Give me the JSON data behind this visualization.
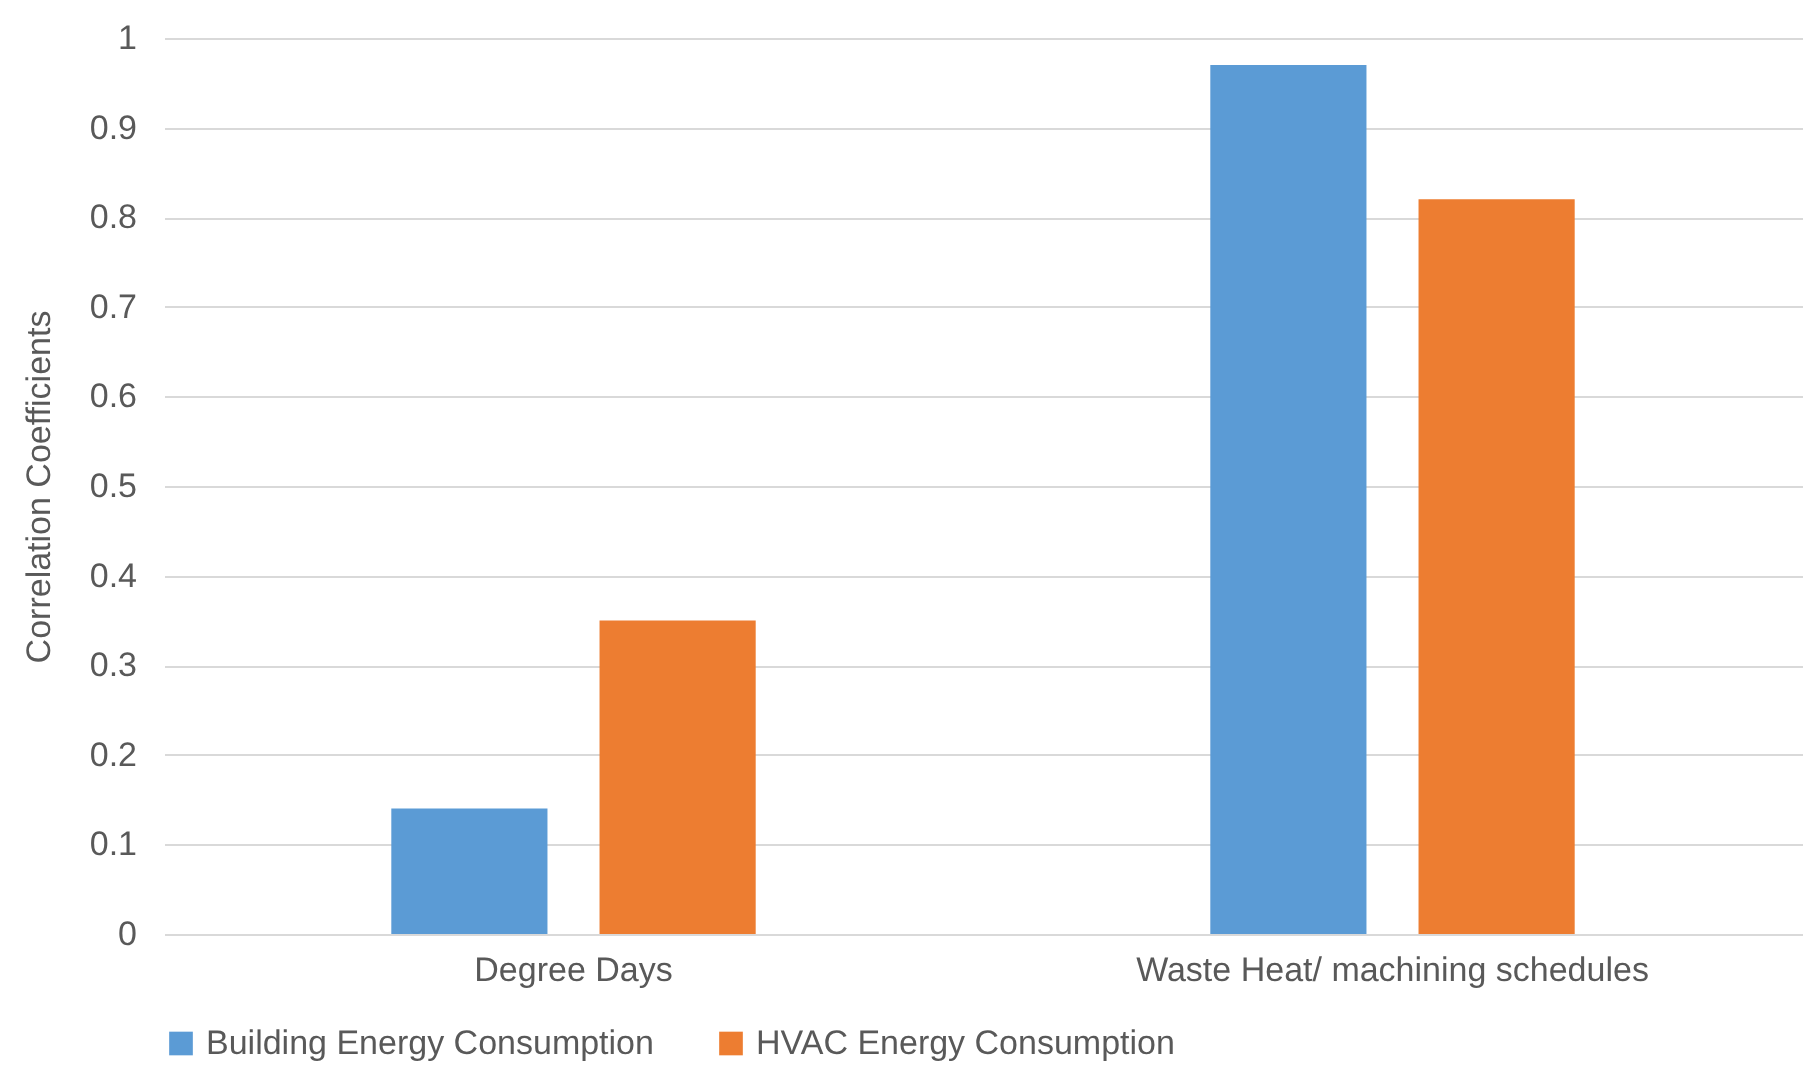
{
  "chart_data": {
    "type": "bar",
    "ylabel": "Correlation Coefficients",
    "categories": [
      "Degree Days",
      "Waste Heat/ machining schedules"
    ],
    "series": [
      {
        "name": "Building Energy Consumption",
        "color": "#5b9bd5",
        "values": [
          0.14,
          0.97
        ]
      },
      {
        "name": "HVAC Energy Consumption",
        "color": "#ed7d31",
        "values": [
          0.35,
          0.82
        ]
      }
    ],
    "ylim": [
      0,
      1
    ],
    "yticks": [
      0,
      0.1,
      0.2,
      0.3,
      0.4,
      0.5,
      0.6,
      0.7,
      0.8,
      0.9,
      1
    ],
    "grid": "y",
    "legend": "bottom"
  }
}
